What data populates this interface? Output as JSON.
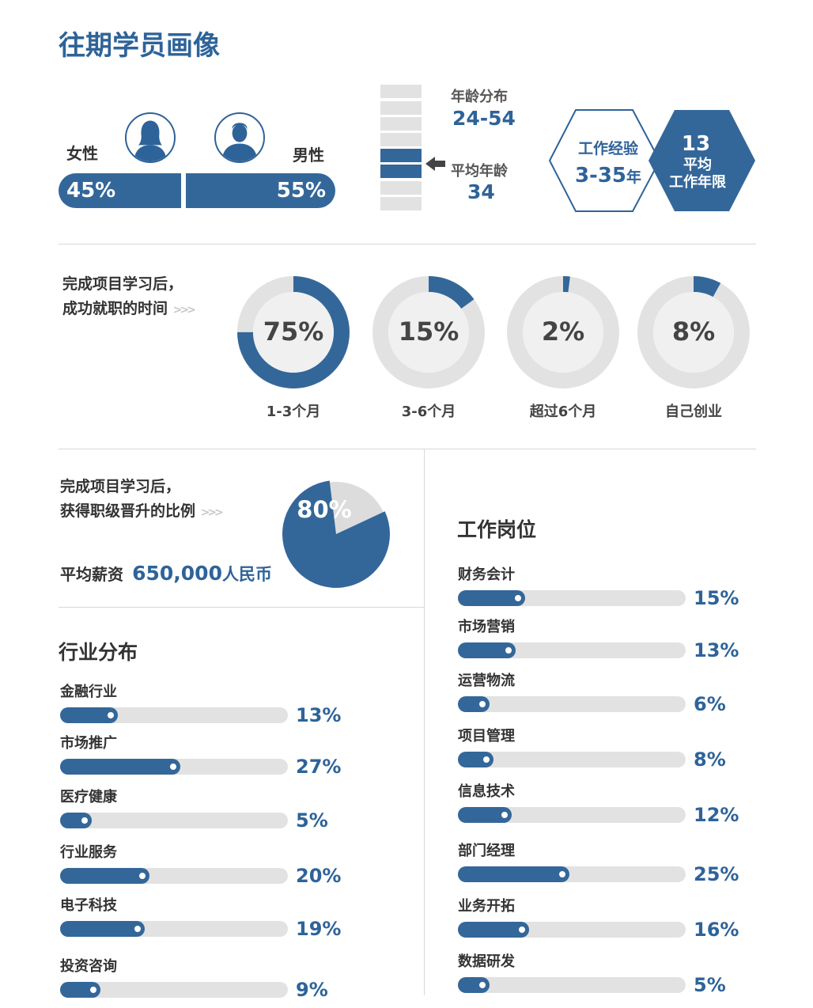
{
  "title": "往期学员画像",
  "gender": {
    "female_label": "女性",
    "male_label": "男性",
    "female_pct": "45%",
    "male_pct": "55%"
  },
  "age": {
    "range_label": "年龄分布",
    "range_value": "24-54",
    "avg_label": "平均年龄",
    "avg_value": "34"
  },
  "experience": {
    "label": "工作经验",
    "range_value": "3-35",
    "range_unit": "年",
    "avg_value": "13",
    "avg_line1": "平均",
    "avg_line2": "工作年限"
  },
  "employment": {
    "note_line1": "完成项目学习后，",
    "note_line2": "成功就职的时间"
  },
  "promotion": {
    "note_line1": "完成项目学习后，",
    "note_line2": "获得职级晋升的比例",
    "pct_label": "80%"
  },
  "salary": {
    "label": "平均薪资",
    "value": "650,000",
    "unit": "人民币"
  },
  "industry_title": "行业分布",
  "position_title": "工作岗位",
  "chart_data": [
    {
      "type": "pie",
      "subtype": "donut",
      "categories": [
        "1-3个月",
        "3-6个月",
        "超过6个月",
        "自己创业"
      ],
      "values": [
        75,
        15,
        2,
        8
      ],
      "labels": [
        "75%",
        "15%",
        "2%",
        "8%"
      ]
    },
    {
      "type": "pie",
      "values": [
        80,
        20
      ],
      "labels": [
        "80%",
        ""
      ]
    },
    {
      "type": "bar",
      "orientation": "horizontal",
      "title": "行业分布",
      "categories": [
        "金融行业",
        "市场推广",
        "医疗健康",
        "行业服务",
        "电子科技",
        "投资咨询"
      ],
      "values": [
        13,
        27,
        5,
        20,
        19,
        9
      ],
      "labels": [
        "13%",
        "27%",
        "5%",
        "20%",
        "19%",
        "9%"
      ]
    },
    {
      "type": "bar",
      "orientation": "horizontal",
      "title": "工作岗位",
      "categories": [
        "财务会计",
        "市场营销",
        "运营物流",
        "项目管理",
        "信息技术",
        "部门经理",
        "业务开拓",
        "数据研发"
      ],
      "values": [
        15,
        13,
        6,
        8,
        12,
        25,
        16,
        5
      ],
      "labels": [
        "15%",
        "13%",
        "6%",
        "8%",
        "12%",
        "25%",
        "16%",
        "5%"
      ]
    }
  ],
  "colors": {
    "primary": "#346799",
    "track": "#e2e2e2",
    "donut_inner": "#f0f0f0"
  }
}
